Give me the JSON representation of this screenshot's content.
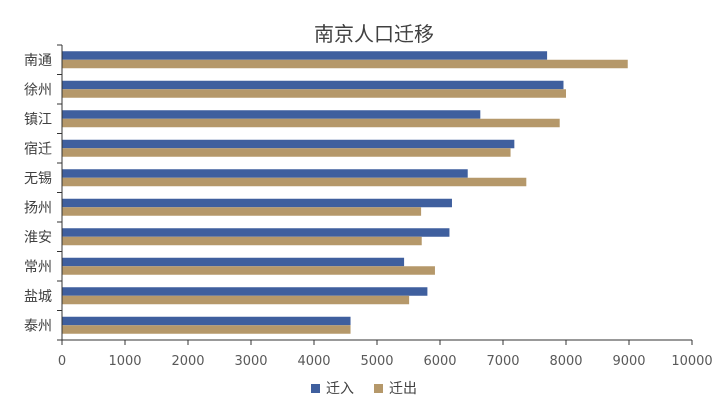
{
  "chart_data": {
    "type": "bar",
    "orientation": "horizontal",
    "title": "南京人口迁移",
    "categories": [
      "南通",
      "徐州",
      "镇江",
      "宿迁",
      "无锡",
      "扬州",
      "淮安",
      "常州",
      "盐城",
      "泰州"
    ],
    "series": [
      {
        "name": "迁入",
        "color": "#3F5F9E",
        "values": [
          7700,
          7960,
          6640,
          7180,
          6440,
          6190,
          6150,
          5430,
          5800,
          4580
        ]
      },
      {
        "name": "迁出",
        "color": "#B5986A",
        "values": [
          8980,
          8000,
          7900,
          7120,
          7370,
          5700,
          5710,
          5920,
          5510,
          4580
        ]
      }
    ],
    "xlim": [
      0,
      10000
    ],
    "xticks": [
      "0",
      "1000",
      "2000",
      "3000",
      "4000",
      "5000",
      "6000",
      "7000",
      "8000",
      "9000",
      "10000"
    ],
    "grid": false,
    "legend_position": "bottom"
  }
}
